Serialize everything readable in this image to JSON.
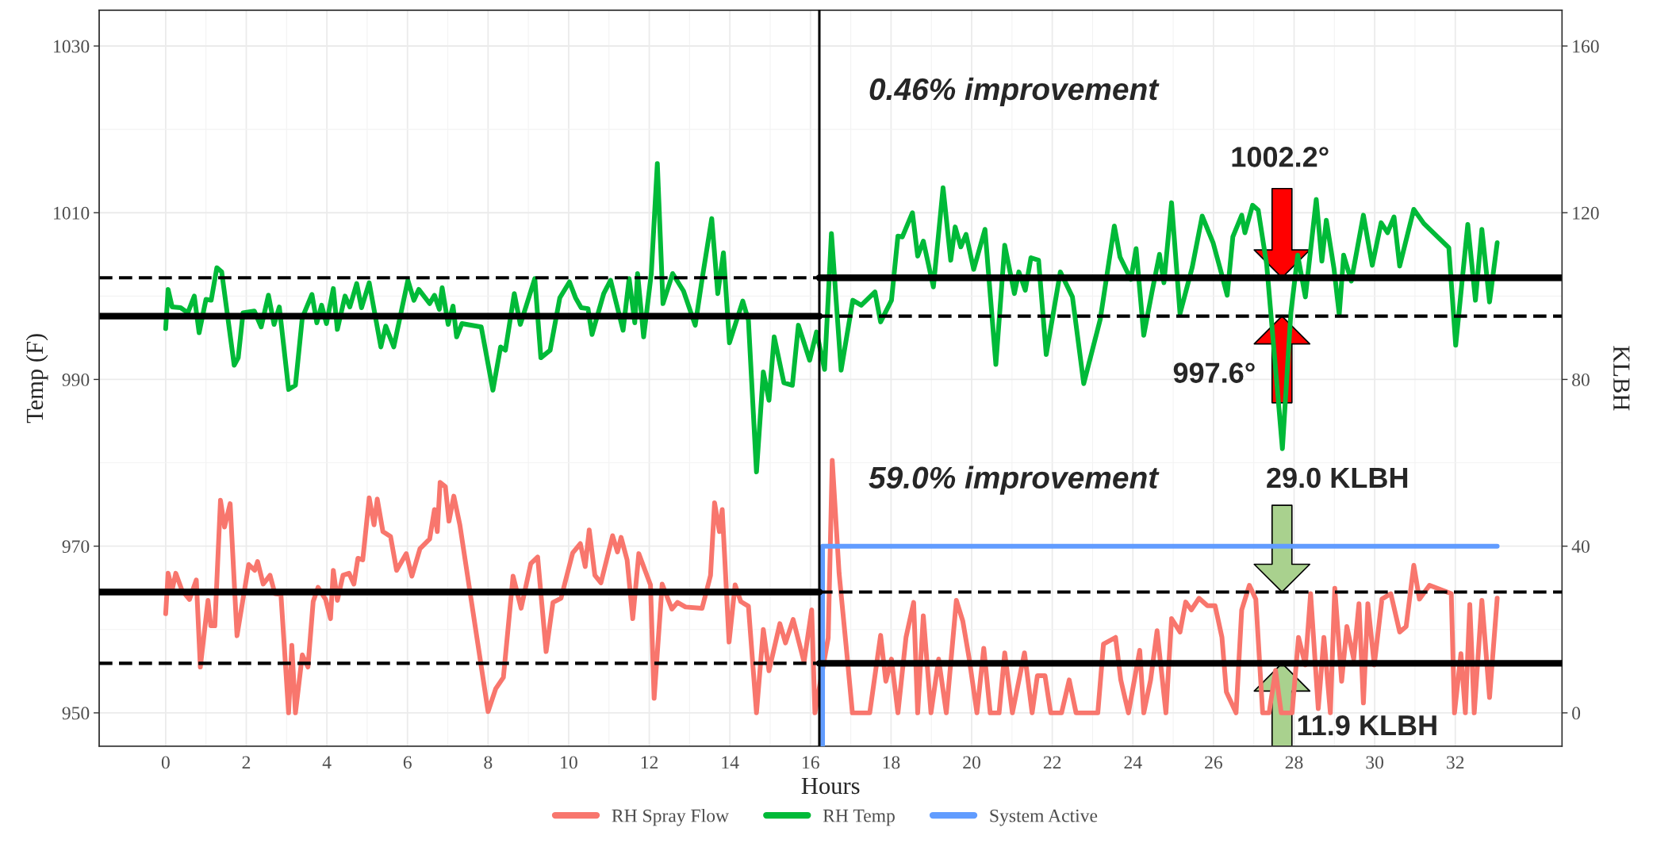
{
  "chart_data": {
    "type": "line",
    "xlabel": "Hours",
    "ylabel": "Temp (F)",
    "y2label": "KLBH",
    "xlim": [
      -1.65,
      34.65
    ],
    "xticks": [
      0,
      2,
      4,
      6,
      8,
      10,
      12,
      14,
      16,
      18,
      20,
      22,
      24,
      26,
      28,
      30,
      32
    ],
    "ylim": [
      946,
      1034.3
    ],
    "yticks": [
      950,
      970,
      990,
      1010,
      1030
    ],
    "y2lim": [
      -8,
      168.6
    ],
    "y2ticks": [
      0,
      40,
      80,
      120,
      160
    ],
    "grid": true,
    "legend": "bottom",
    "line_style": "solid",
    "series": [
      {
        "name": "RH Spray Flow",
        "color": "#f8766d",
        "axis": "y2",
        "x": [
          0,
          0.06,
          0.16,
          0.25,
          0.4,
          0.59,
          0.76,
          0.86,
          1.05,
          1.12,
          1.22,
          1.36,
          1.46,
          1.6,
          1.77,
          2.06,
          2.21,
          2.28,
          2.42,
          2.59,
          2.71,
          2.86,
          3.05,
          3.13,
          3.22,
          3.39,
          3.53,
          3.66,
          3.78,
          3.97,
          4.09,
          4.16,
          4.26,
          4.4,
          4.55,
          4.67,
          4.77,
          4.89,
          5.05,
          5.17,
          5.25,
          5.39,
          5.58,
          5.73,
          5.97,
          6.11,
          6.31,
          6.55,
          6.67,
          6.74,
          6.81,
          6.94,
          7.03,
          7.15,
          7.3,
          8.0,
          8.19,
          8.38,
          8.62,
          8.82,
          9.06,
          9.23,
          9.44,
          9.61,
          9.81,
          10.1,
          10.29,
          10.41,
          10.51,
          10.65,
          10.8,
          11.09,
          11.21,
          11.3,
          11.45,
          11.59,
          11.74,
          12.03,
          12.12,
          12.32,
          12.56,
          12.7,
          12.9,
          13.31,
          13.52,
          13.62,
          13.74,
          13.81,
          13.98,
          14.13,
          14.27,
          14.46,
          14.66,
          14.83,
          14.97,
          15.24,
          15.38,
          15.57,
          15.84,
          16.03,
          16.11,
          16.44,
          16.54,
          16.71,
          16.9,
          17.04,
          17.47,
          17.74,
          17.87,
          18.01,
          18.17,
          18.37,
          18.56,
          18.66,
          18.8,
          18.99,
          19.18,
          19.37,
          19.62,
          19.78,
          19.94,
          20.13,
          20.3,
          20.46,
          20.68,
          20.82,
          21.01,
          21.31,
          21.5,
          21.63,
          21.82,
          21.96,
          22.23,
          22.42,
          22.59,
          23.13,
          23.27,
          23.57,
          23.7,
          23.89,
          24.17,
          24.27,
          24.44,
          24.6,
          24.82,
          24.96,
          25.17,
          25.31,
          25.45,
          25.64,
          25.85,
          26.04,
          26.21,
          26.32,
          26.56,
          26.7,
          26.89,
          27.05,
          27.22,
          27.38,
          27.54,
          27.68,
          27.95,
          28.11,
          28.28,
          28.41,
          28.6,
          28.74,
          28.9,
          29.01,
          29.18,
          29.31,
          29.48,
          29.61,
          29.72,
          29.83,
          29.99,
          30.18,
          30.4,
          30.62,
          30.78,
          30.97,
          31.11,
          31.36,
          31.9,
          31.98,
          32.14,
          32.25,
          32.36,
          32.47,
          32.66,
          32.85,
          33.04
        ],
        "values": [
          23.8,
          33.5,
          29.5,
          33.5,
          29.5,
          27.2,
          31.9,
          11.0,
          27.0,
          20.9,
          20.9,
          51.0,
          44.6,
          50.2,
          18.5,
          35.6,
          34.2,
          36.3,
          30.9,
          33.0,
          28.6,
          28.4,
          0,
          16.2,
          0,
          13.9,
          11.0,
          26.7,
          30.1,
          27.2,
          22.6,
          34.2,
          27.0,
          33.0,
          33.5,
          30.9,
          37.1,
          36.7,
          51.6,
          45.1,
          51.3,
          43.5,
          42.3,
          34.2,
          38.2,
          32.8,
          39.4,
          41.7,
          48.8,
          43.5,
          55.3,
          54.3,
          46.0,
          52.0,
          45.1,
          0.3,
          5.8,
          8.5,
          32.8,
          25.1,
          35.8,
          37.4,
          14.7,
          26.5,
          27.5,
          38.4,
          40.6,
          35.1,
          43.9,
          33.0,
          31.2,
          42.5,
          38.6,
          42.1,
          36.7,
          22.6,
          38.2,
          30.7,
          3.5,
          30.9,
          24.9,
          26.5,
          25.4,
          25.1,
          33.0,
          50.4,
          43.5,
          48.8,
          17.0,
          30.7,
          26.7,
          25.6,
          0,
          20.0,
          10.1,
          21.4,
          16.8,
          22.4,
          12.2,
          24.7,
          0,
          18.0,
          60.6,
          33.5,
          14.5,
          0,
          0,
          18.6,
          7.6,
          12.9,
          0,
          18.1,
          26.5,
          0,
          23.3,
          0,
          12.9,
          0,
          27.0,
          22.0,
          12.9,
          0,
          15.5,
          0,
          0,
          14.4,
          0,
          14.4,
          0,
          8.9,
          8.9,
          0,
          0,
          7.9,
          0,
          0,
          16.5,
          18.1,
          7.9,
          0,
          15.0,
          0,
          7.9,
          19.7,
          0,
          22.6,
          19.4,
          26.6,
          24.7,
          27.5,
          25.7,
          25.7,
          18.1,
          5.0,
          0,
          24.7,
          30.6,
          27.3,
          0,
          0,
          10.2,
          0,
          0,
          18.1,
          11.5,
          28.6,
          1.0,
          18.1,
          0,
          29.9,
          7.6,
          20.7,
          12.9,
          26.2,
          2.4,
          26.2,
          11.5,
          27.3,
          28.6,
          19.4,
          20.7,
          35.4,
          27.3,
          30.6,
          28.6,
          0,
          14.2,
          0,
          26.0,
          0,
          27.0,
          3.7,
          27.5
        ]
      },
      {
        "name": "RH Temp",
        "color": "#00ba38",
        "x": [
          0,
          0.06,
          0.16,
          0.37,
          0.55,
          0.71,
          0.83,
          1.0,
          1.13,
          1.27,
          1.39,
          1.7,
          1.8,
          1.92,
          2.2,
          2.37,
          2.55,
          2.69,
          2.82,
          3.05,
          3.22,
          3.39,
          3.63,
          3.75,
          3.87,
          3.99,
          4.16,
          4.26,
          4.45,
          4.57,
          4.74,
          4.86,
          5.05,
          5.34,
          5.46,
          5.66,
          6.01,
          6.16,
          6.28,
          6.55,
          6.67,
          6.79,
          6.86,
          7.01,
          7.13,
          7.22,
          7.35,
          7.83,
          8.12,
          8.31,
          8.43,
          8.65,
          8.8,
          8.99,
          9.16,
          9.31,
          9.54,
          9.78,
          10.02,
          10.17,
          10.31,
          10.48,
          10.58,
          10.87,
          11.04,
          11.35,
          11.5,
          11.64,
          11.71,
          11.86,
          12.05,
          12.2,
          12.34,
          12.58,
          12.85,
          13.14,
          13.31,
          13.55,
          13.7,
          13.84,
          13.99,
          14.32,
          14.46,
          14.66,
          14.83,
          14.97,
          15.1,
          15.34,
          15.55,
          15.7,
          15.98,
          16.15,
          16.35,
          16.52,
          16.76,
          17.05,
          17.26,
          17.6,
          17.74,
          18.01,
          18.17,
          18.28,
          18.53,
          18.66,
          18.8,
          19.05,
          19.29,
          19.48,
          19.59,
          19.73,
          19.86,
          20.05,
          20.33,
          20.6,
          20.82,
          21.06,
          21.17,
          21.33,
          21.47,
          21.66,
          21.85,
          22.2,
          22.5,
          22.78,
          23.19,
          23.54,
          23.68,
          23.95,
          24.08,
          24.27,
          24.47,
          24.66,
          24.77,
          24.96,
          25.17,
          25.47,
          25.72,
          25.99,
          26.21,
          26.34,
          26.48,
          26.7,
          26.78,
          26.97,
          27.11,
          27.32,
          27.71,
          27.92,
          28.09,
          28.28,
          28.55,
          28.69,
          28.8,
          28.99,
          29.12,
          29.23,
          29.42,
          29.72,
          29.94,
          30.16,
          30.32,
          30.48,
          30.62,
          30.97,
          31.22,
          31.84,
          32.01,
          32.31,
          32.5,
          32.66,
          32.85,
          33.04
        ],
        "values": [
          996.1,
          1000.8,
          998.7,
          998.6,
          998.0,
          1000.0,
          995.6,
          999.6,
          999.5,
          1003.4,
          1002.9,
          991.7,
          992.6,
          998.0,
          998.2,
          996.3,
          1000.1,
          996.6,
          998.7,
          988.8,
          989.3,
          997.4,
          1000.2,
          996.8,
          998.9,
          996.7,
          1000.9,
          996.0,
          1000.0,
          998.7,
          1001.5,
          998.6,
          1001.6,
          993.9,
          996.4,
          993.9,
          1001.9,
          999.5,
          1000.8,
          999.1,
          1000.1,
          998.4,
          1001.0,
          996.6,
          998.8,
          995.1,
          996.7,
          996.3,
          988.7,
          993.9,
          993.5,
          1000.3,
          996.6,
          999.5,
          1002.1,
          992.6,
          993.5,
          999.8,
          1001.7,
          999.8,
          998.6,
          998.5,
          995.4,
          1000.3,
          1001.9,
          995.9,
          1002.1,
          996.8,
          1002.7,
          995.1,
          1002.7,
          1015.9,
          999.1,
          1002.7,
          1000.6,
          996.5,
          1002.0,
          1009.3,
          1000.3,
          1005.2,
          994.4,
          999.4,
          997.1,
          978.9,
          990.9,
          987.5,
          995.1,
          989.6,
          989.3,
          996.5,
          992.3,
          995.7,
          991.2,
          1007.5,
          991.1,
          999.5,
          998.9,
          1000.5,
          996.9,
          999.5,
          1007.2,
          1007.1,
          1010.0,
          1004.8,
          1006.6,
          1001.1,
          1013.0,
          1004.3,
          1008.3,
          1005.9,
          1007.4,
          1003.2,
          1008.0,
          991.8,
          1006.1,
          1000.3,
          1002.9,
          1000.7,
          1004.6,
          1004.3,
          993.0,
          1002.9,
          999.9,
          989.5,
          997.2,
          1008.4,
          1004.7,
          1002.0,
          1005.7,
          995.3,
          1000.4,
          1005.0,
          1001.6,
          1011.2,
          997.9,
          1003.4,
          1009.6,
          1006.4,
          1002.5,
          1000.1,
          1007.1,
          1009.7,
          1007.6,
          1010.9,
          1010.3,
          1003.8,
          981.7,
          998.0,
          1004.9,
          999.9,
          1011.6,
          1004.2,
          1009.1,
          1003.3,
          997.8,
          1004.9,
          1001.8,
          1009.7,
          1003.7,
          1008.8,
          1007.6,
          1009.5,
          1003.6,
          1010.4,
          1008.7,
          1005.8,
          994.1,
          1008.6,
          999.5,
          1008.0,
          999.3,
          1006.4
        ]
      },
      {
        "name": "System Active",
        "color": "#619cff",
        "axis": "y2",
        "x": [
          16.3,
          16.3,
          33.04
        ],
        "values": [
          -8,
          40,
          40
        ]
      },
      {
        "color": "#000000",
        "x": [
          -1.65,
          16.22
        ],
        "values": [
          997.6,
          997.6
        ]
      },
      {
        "color": "#000000",
        "line_style": "dashed",
        "x": [
          16.22,
          34.65
        ],
        "values": [
          997.6,
          997.6
        ]
      },
      {
        "color": "#000000",
        "line_style": "dashed",
        "x": [
          -1.65,
          16.22
        ],
        "values": [
          1002.2,
          1002.2
        ]
      },
      {
        "color": "#000000",
        "x": [
          16.22,
          34.65
        ],
        "values": [
          1002.2,
          1002.2
        ]
      },
      {
        "color": "#000000",
        "axis": "y2",
        "x": [
          -1.65,
          16.22
        ],
        "values": [
          29.0,
          29.0
        ]
      },
      {
        "color": "#000000",
        "axis": "y2",
        "line_style": "dashed",
        "x": [
          16.22,
          34.65
        ],
        "values": [
          29.0,
          29.0
        ]
      },
      {
        "color": "#000000",
        "axis": "y2",
        "line_style": "dashed",
        "x": [
          -1.65,
          16.22
        ],
        "values": [
          11.9,
          11.9
        ]
      },
      {
        "color": "#000000",
        "axis": "y2",
        "x": [
          16.22,
          34.65
        ],
        "values": [
          11.9,
          11.9
        ]
      }
    ],
    "ref_lines": [
      {
        "axis": "x",
        "value": 16.22,
        "color": "#000000"
      }
    ],
    "annotations": [
      "0.46% improvement",
      "1002.2°",
      "997.6°",
      "59.0% improvement",
      "29.0 KLBH",
      "11.9 KLBH"
    ]
  }
}
